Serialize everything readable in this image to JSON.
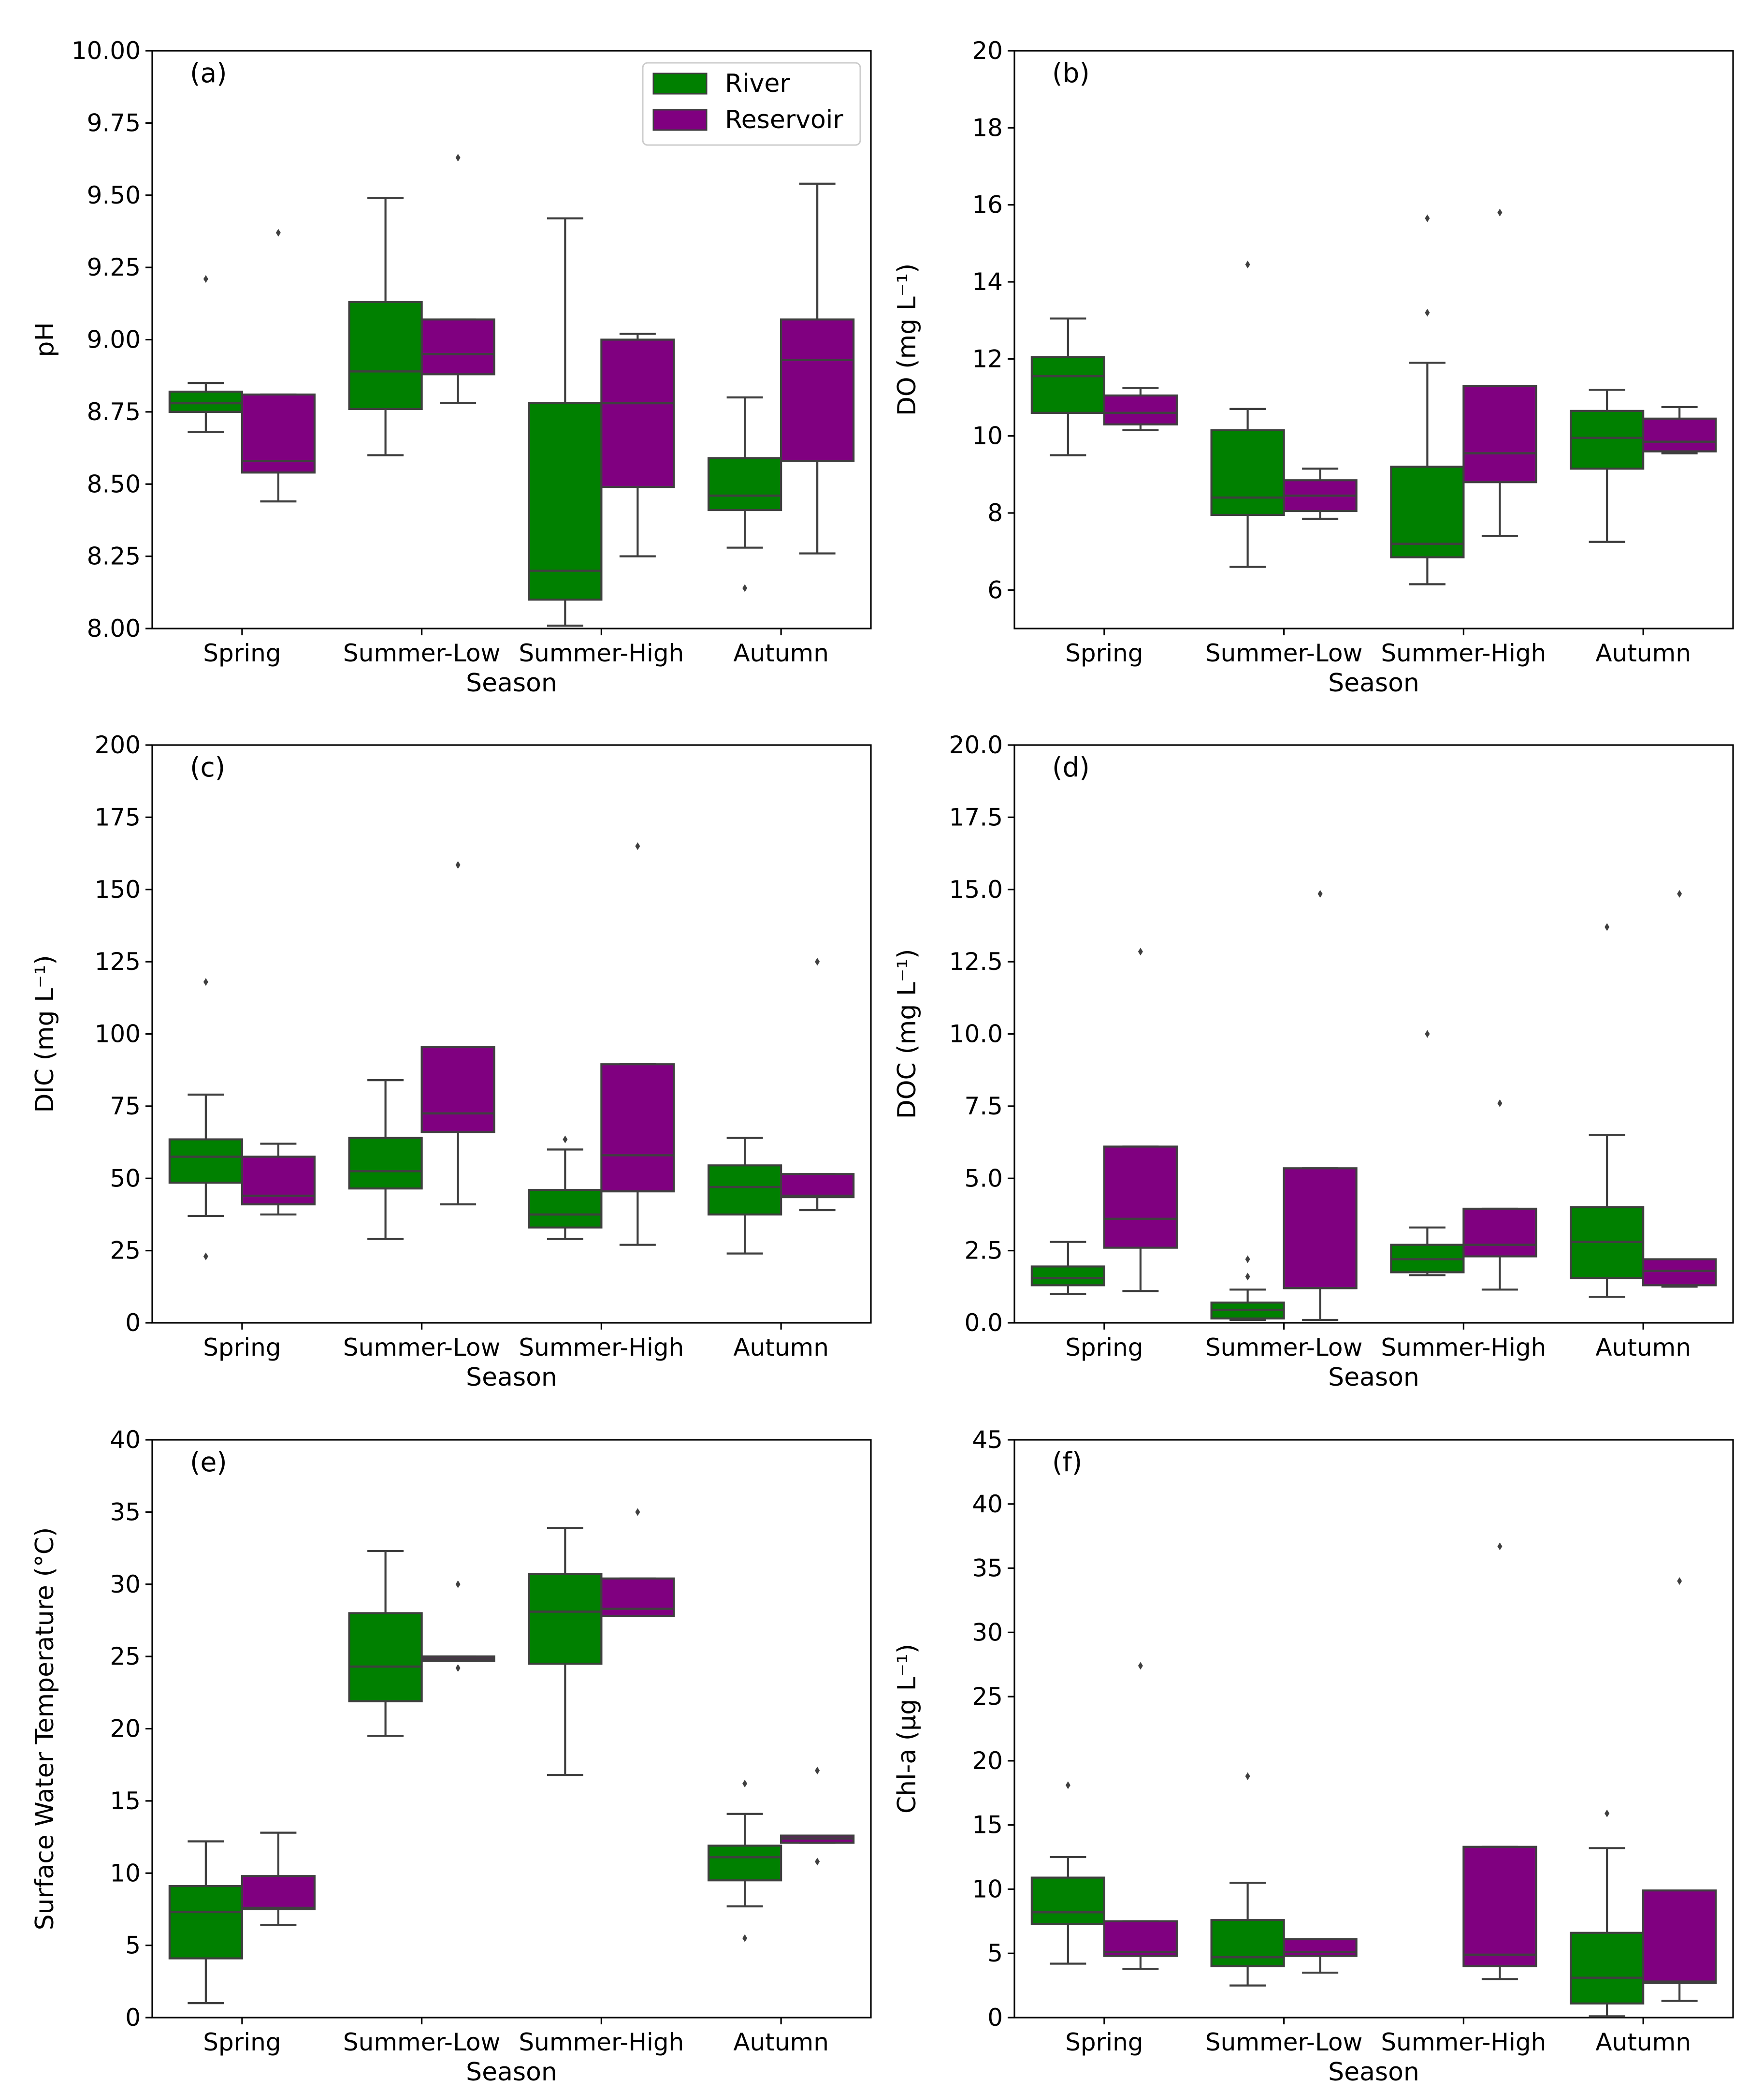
{
  "legend": {
    "items": [
      {
        "label": "River",
        "color": "#008000"
      },
      {
        "label": "Reservoir",
        "color": "#800080"
      }
    ]
  },
  "chart_data": [
    {
      "panel": "(a)",
      "type": "box",
      "xlabel": "Season",
      "ylabel": "pH",
      "ylim": [
        8.0,
        10.0
      ],
      "yticks": [
        "8.00",
        "8.25",
        "8.50",
        "8.75",
        "9.00",
        "9.25",
        "9.50",
        "9.75",
        "10.00"
      ],
      "categories": [
        "Spring",
        "Summer-Low",
        "Summer-High",
        "Autumn"
      ],
      "series": [
        {
          "name": "River",
          "boxes": [
            {
              "wlo": 8.68,
              "q1": 8.75,
              "med": 8.78,
              "q3": 8.82,
              "whi": 8.85,
              "fliers": [
                9.21
              ]
            },
            {
              "wlo": 8.6,
              "q1": 8.76,
              "med": 8.89,
              "q3": 9.13,
              "whi": 9.49,
              "fliers": []
            },
            {
              "wlo": 8.01,
              "q1": 8.1,
              "med": 8.2,
              "q3": 8.78,
              "whi": 9.42,
              "fliers": []
            },
            {
              "wlo": 8.28,
              "q1": 8.41,
              "med": 8.46,
              "q3": 8.59,
              "whi": 8.8,
              "fliers": [
                8.14
              ]
            }
          ]
        },
        {
          "name": "Reservoir",
          "boxes": [
            {
              "wlo": 8.44,
              "q1": 8.54,
              "med": 8.58,
              "q3": 8.81,
              "whi": 8.81,
              "fliers": [
                9.37
              ]
            },
            {
              "wlo": 8.78,
              "q1": 8.88,
              "med": 8.95,
              "q3": 9.07,
              "whi": 9.07,
              "fliers": [
                9.63
              ]
            },
            {
              "wlo": 8.25,
              "q1": 8.49,
              "med": 8.78,
              "q3": 9.0,
              "whi": 9.02,
              "fliers": []
            },
            {
              "wlo": 8.26,
              "q1": 8.58,
              "med": 8.93,
              "q3": 9.07,
              "whi": 9.54,
              "fliers": []
            }
          ]
        }
      ]
    },
    {
      "panel": "(b)",
      "type": "box",
      "xlabel": "Season",
      "ylabel": "DO (mg L⁻¹)",
      "ylim": [
        5,
        20
      ],
      "yticks": [
        "6",
        "8",
        "10",
        "12",
        "14",
        "16",
        "18",
        "20"
      ],
      "categories": [
        "Spring",
        "Summer-Low",
        "Summer-High",
        "Autumn"
      ],
      "series": [
        {
          "name": "River",
          "boxes": [
            {
              "wlo": 9.5,
              "q1": 10.6,
              "med": 11.55,
              "q3": 12.05,
              "whi": 13.05,
              "fliers": []
            },
            {
              "wlo": 6.6,
              "q1": 7.95,
              "med": 8.4,
              "q3": 10.15,
              "whi": 10.7,
              "fliers": [
                14.45
              ]
            },
            {
              "wlo": 6.15,
              "q1": 6.85,
              "med": 7.2,
              "q3": 9.2,
              "whi": 11.9,
              "fliers": [
                13.2,
                15.65
              ]
            },
            {
              "wlo": 7.25,
              "q1": 9.15,
              "med": 9.95,
              "q3": 10.65,
              "whi": 11.2,
              "fliers": []
            }
          ]
        },
        {
          "name": "Reservoir",
          "boxes": [
            {
              "wlo": 10.15,
              "q1": 10.3,
              "med": 10.6,
              "q3": 11.05,
              "whi": 11.25,
              "fliers": []
            },
            {
              "wlo": 7.85,
              "q1": 8.05,
              "med": 8.45,
              "q3": 8.85,
              "whi": 9.15,
              "fliers": []
            },
            {
              "wlo": 7.4,
              "q1": 8.8,
              "med": 9.55,
              "q3": 11.3,
              "whi": 11.3,
              "fliers": [
                15.8
              ]
            },
            {
              "wlo": 9.55,
              "q1": 9.6,
              "med": 9.85,
              "q3": 10.45,
              "whi": 10.75,
              "fliers": []
            }
          ]
        }
      ]
    },
    {
      "panel": "(c)",
      "type": "box",
      "xlabel": "Season",
      "ylabel": "DIC (mg L⁻¹)",
      "ylim": [
        0,
        200
      ],
      "yticks": [
        "0",
        "25",
        "50",
        "75",
        "100",
        "125",
        "150",
        "175",
        "200"
      ],
      "categories": [
        "Spring",
        "Summer-Low",
        "Summer-High",
        "Autumn"
      ],
      "series": [
        {
          "name": "River",
          "boxes": [
            {
              "wlo": 37,
              "q1": 48.5,
              "med": 57.5,
              "q3": 63.5,
              "whi": 79,
              "fliers": [
                23,
                118
              ]
            },
            {
              "wlo": 29,
              "q1": 46.5,
              "med": 52.5,
              "q3": 64,
              "whi": 84,
              "fliers": []
            },
            {
              "wlo": 29,
              "q1": 33,
              "med": 37.5,
              "q3": 46,
              "whi": 60,
              "fliers": [
                63.5
              ]
            },
            {
              "wlo": 24,
              "q1": 37.5,
              "med": 47,
              "q3": 54.5,
              "whi": 64,
              "fliers": []
            }
          ]
        },
        {
          "name": "Reservoir",
          "boxes": [
            {
              "wlo": 37.5,
              "q1": 41,
              "med": 44,
              "q3": 57.5,
              "whi": 62,
              "fliers": []
            },
            {
              "wlo": 41,
              "q1": 66,
              "med": 72.5,
              "q3": 95.5,
              "whi": 95.5,
              "fliers": [
                158.5
              ]
            },
            {
              "wlo": 27,
              "q1": 45.5,
              "med": 58,
              "q3": 89.5,
              "whi": 89.5,
              "fliers": [
                165
              ]
            },
            {
              "wlo": 39,
              "q1": 43.5,
              "med": 44,
              "q3": 51.5,
              "whi": 51.5,
              "fliers": [
                125
              ]
            }
          ]
        }
      ]
    },
    {
      "panel": "(d)",
      "type": "box",
      "xlabel": "Season",
      "ylabel": "DOC (mg L⁻¹)",
      "ylim": [
        0,
        20
      ],
      "yticks": [
        "0.0",
        "2.5",
        "5.0",
        "7.5",
        "10.0",
        "12.5",
        "15.0",
        "17.5",
        "20.0"
      ],
      "categories": [
        "Spring",
        "Summer-Low",
        "Summer-High",
        "Autumn"
      ],
      "series": [
        {
          "name": "River",
          "boxes": [
            {
              "wlo": 1.0,
              "q1": 1.3,
              "med": 1.55,
              "q3": 1.95,
              "whi": 2.8,
              "fliers": []
            },
            {
              "wlo": 0.1,
              "q1": 0.15,
              "med": 0.45,
              "q3": 0.7,
              "whi": 1.15,
              "fliers": [
                1.6,
                2.2
              ]
            },
            {
              "wlo": 1.65,
              "q1": 1.75,
              "med": 2.2,
              "q3": 2.7,
              "whi": 3.3,
              "fliers": [
                10.0
              ]
            },
            {
              "wlo": 0.9,
              "q1": 1.55,
              "med": 2.8,
              "q3": 4.0,
              "whi": 6.5,
              "fliers": [
                13.7
              ]
            }
          ]
        },
        {
          "name": "Reservoir",
          "boxes": [
            {
              "wlo": 1.1,
              "q1": 2.6,
              "med": 3.6,
              "q3": 6.1,
              "whi": 6.1,
              "fliers": [
                12.85
              ]
            },
            {
              "wlo": 0.1,
              "q1": 1.2,
              "med": 1.2,
              "q3": 5.35,
              "whi": 5.35,
              "fliers": [
                14.85
              ]
            },
            {
              "wlo": 1.15,
              "q1": 2.3,
              "med": 2.7,
              "q3": 3.95,
              "whi": 3.95,
              "fliers": [
                7.6
              ]
            },
            {
              "wlo": 1.25,
              "q1": 1.3,
              "med": 1.8,
              "q3": 2.2,
              "whi": 2.2,
              "fliers": [
                14.85
              ]
            }
          ]
        }
      ]
    },
    {
      "panel": "(e)",
      "type": "box",
      "xlabel": "Season",
      "ylabel": "Surface Water Temperature (°C)",
      "ylim": [
        0,
        40
      ],
      "yticks": [
        "0",
        "5",
        "10",
        "15",
        "20",
        "25",
        "30",
        "35",
        "40"
      ],
      "categories": [
        "Spring",
        "Summer-Low",
        "Summer-High",
        "Autumn"
      ],
      "series": [
        {
          "name": "River",
          "boxes": [
            {
              "wlo": 1.0,
              "q1": 4.1,
              "med": 7.3,
              "q3": 9.1,
              "whi": 12.2,
              "fliers": []
            },
            {
              "wlo": 19.5,
              "q1": 21.9,
              "med": 24.3,
              "q3": 28.0,
              "whi": 32.3,
              "fliers": []
            },
            {
              "wlo": 16.8,
              "q1": 24.5,
              "med": 28.1,
              "q3": 30.7,
              "whi": 33.9,
              "fliers": []
            },
            {
              "wlo": 7.7,
              "q1": 9.5,
              "med": 11.1,
              "q3": 11.9,
              "whi": 14.1,
              "fliers": [
                5.5,
                16.2
              ]
            }
          ]
        },
        {
          "name": "Reservoir",
          "boxes": [
            {
              "wlo": 6.4,
              "q1": 7.5,
              "med": 7.6,
              "q3": 9.8,
              "whi": 12.8,
              "fliers": []
            },
            {
              "wlo": 24.7,
              "q1": 24.7,
              "med": 24.85,
              "q3": 25.0,
              "whi": 25.0,
              "fliers": [
                24.2,
                30.0
              ]
            },
            {
              "wlo": 27.8,
              "q1": 27.8,
              "med": 28.3,
              "q3": 30.4,
              "whi": 30.4,
              "fliers": [
                35.0
              ]
            },
            {
              "wlo": 12.1,
              "q1": 12.1,
              "med": 12.4,
              "q3": 12.6,
              "whi": 12.6,
              "fliers": [
                10.8,
                17.1
              ]
            }
          ]
        }
      ]
    },
    {
      "panel": "(f)",
      "type": "box",
      "xlabel": "Season",
      "ylabel": "Chl-a (μg L⁻¹)",
      "ylim": [
        0,
        45
      ],
      "yticks": [
        "0",
        "5",
        "10",
        "15",
        "20",
        "25",
        "30",
        "35",
        "40",
        "45"
      ],
      "categories": [
        "Spring",
        "Summer-Low",
        "Summer-High",
        "Autumn"
      ],
      "series": [
        {
          "name": "River",
          "boxes": [
            {
              "wlo": 4.2,
              "q1": 7.3,
              "med": 8.2,
              "q3": 10.9,
              "whi": 12.5,
              "fliers": [
                18.1
              ]
            },
            {
              "wlo": 2.5,
              "q1": 4.0,
              "med": 4.7,
              "q3": 7.6,
              "whi": 10.5,
              "fliers": [
                18.8
              ]
            },
            null,
            {
              "wlo": 0.1,
              "q1": 1.1,
              "med": 3.1,
              "q3": 6.6,
              "whi": 13.2,
              "fliers": [
                15.9
              ]
            }
          ]
        },
        {
          "name": "Reservoir",
          "boxes": [
            {
              "wlo": 3.8,
              "q1": 4.8,
              "med": 5.1,
              "q3": 7.5,
              "whi": 7.5,
              "fliers": [
                27.4
              ]
            },
            {
              "wlo": 3.5,
              "q1": 4.8,
              "med": 5.1,
              "q3": 6.1,
              "whi": 6.1,
              "fliers": []
            },
            {
              "wlo": 3.0,
              "q1": 4.0,
              "med": 4.9,
              "q3": 13.3,
              "whi": 13.3,
              "fliers": [
                36.7
              ]
            },
            {
              "wlo": 1.3,
              "q1": 2.7,
              "med": 2.8,
              "q3": 9.9,
              "whi": 9.9,
              "fliers": [
                34.0
              ]
            }
          ]
        }
      ]
    }
  ]
}
